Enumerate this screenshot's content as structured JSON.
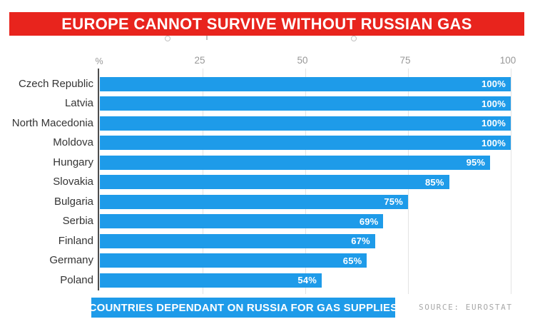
{
  "banner": {
    "title": "EUROPE CANNOT SURVIVE WITHOUT RUSSIAN GAS"
  },
  "axis": {
    "unit_label": "%",
    "ticks": [
      25,
      50,
      75,
      100
    ]
  },
  "chart_data": {
    "type": "bar",
    "orientation": "horizontal",
    "title": "EUROPE CANNOT SURVIVE WITHOUT RUSSIAN GAS",
    "categories": [
      "Czech Republic",
      "Latvia",
      "North Macedonia",
      "Moldova",
      "Hungary",
      "Slovakia",
      "Bulgaria",
      "Serbia",
      "Finland",
      "Germany",
      "Poland"
    ],
    "values": [
      100,
      100,
      100,
      100,
      95,
      85,
      75,
      69,
      67,
      65,
      54
    ],
    "value_labels": [
      "100%",
      "100%",
      "100%",
      "100%",
      "95%",
      "85%",
      "75%",
      "69%",
      "67%",
      "65%",
      "54%"
    ],
    "xlabel": "%",
    "xlim": [
      0,
      100
    ],
    "xticks": [
      25,
      50,
      75,
      100
    ],
    "grid": true,
    "legend": false,
    "caption": "COUNTRIES DEPENDANT ON RUSSIA FOR GAS SUPPLIES",
    "source": "SOURCE: EUROSTAT"
  },
  "footer": {
    "caption": "COUNTRIES DEPENDANT ON RUSSIA FOR GAS SUPPLIES",
    "source": "SOURCE: EUROSTAT"
  },
  "colors": {
    "banner_red": "#E8241D",
    "bar_blue": "#1E9BE9",
    "caption_blue": "#1E9BE9",
    "tick_gray": "#989898",
    "label_dark": "#343434",
    "gridline_gray": "#E3E3E3",
    "axis_dark": "#4D4D4D",
    "source_gray": "#A8A8A8"
  }
}
